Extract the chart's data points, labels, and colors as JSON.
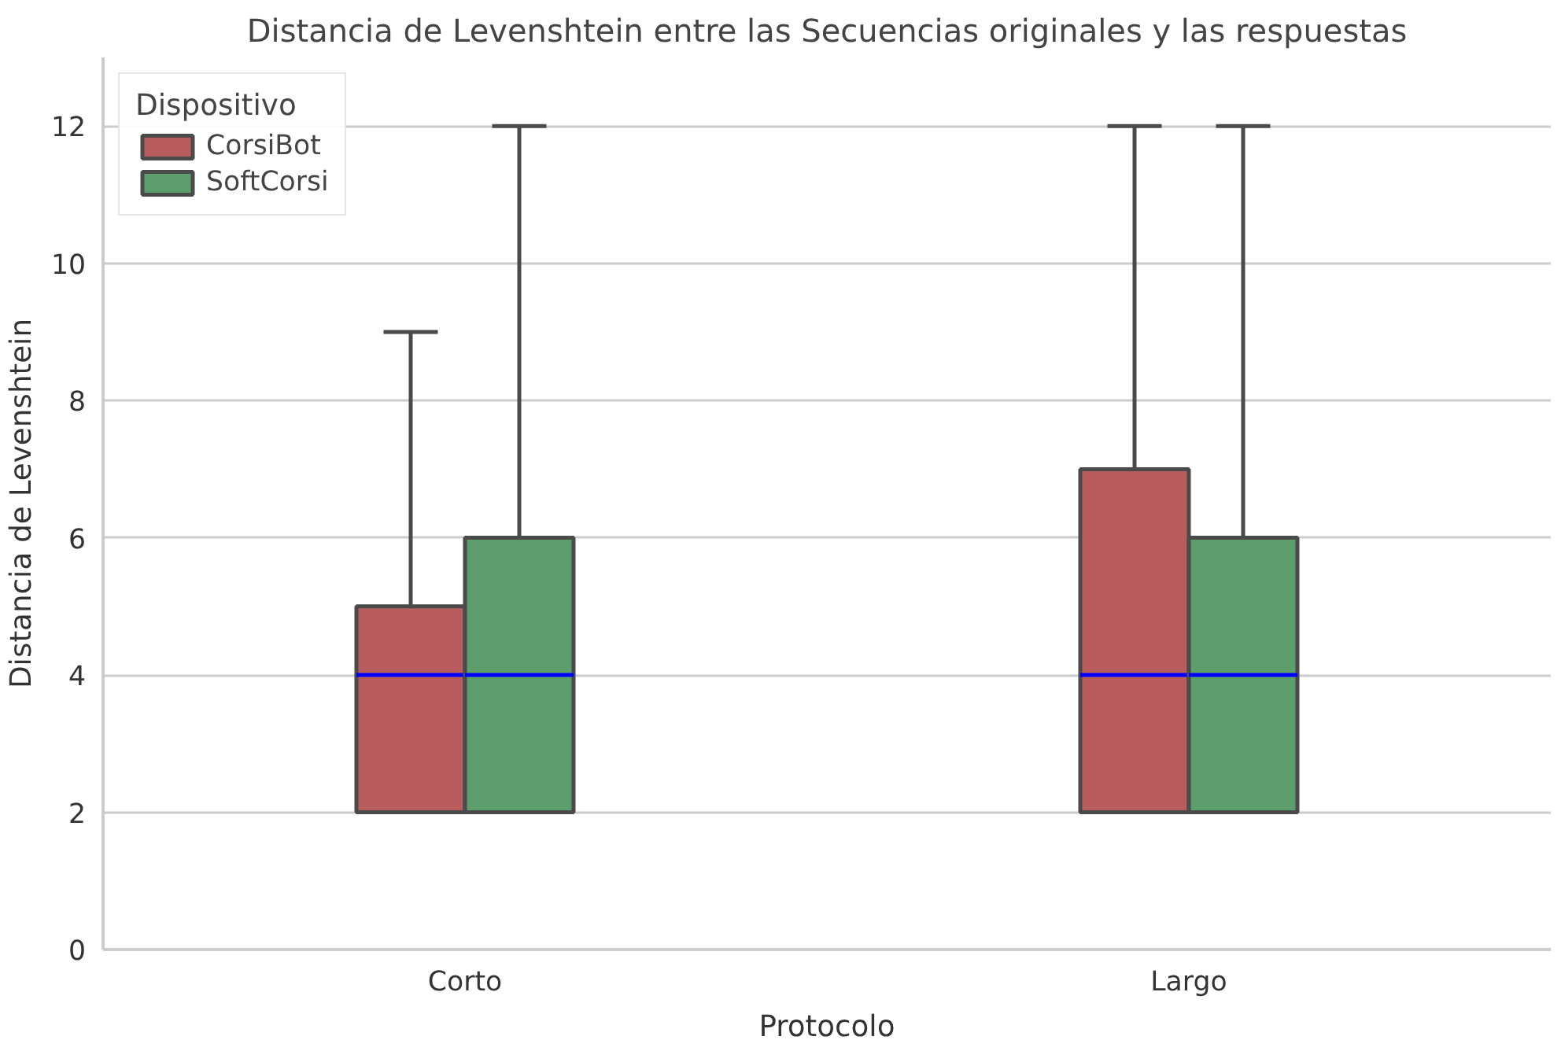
{
  "chart_data": {
    "type": "box",
    "title": "Distancia de Levenshtein entre las Secuencias originales y las respuestas",
    "xlabel": "Protocolo",
    "ylabel": "Distancia de Levenshtein",
    "legend_title": "Dispositivo",
    "categories": [
      "Corto",
      "Largo"
    ],
    "series": [
      {
        "name": "CorsiBot",
        "color": "#b85c5e",
        "boxes": [
          {
            "low": 2,
            "q1": 2,
            "median": 4,
            "q3": 5,
            "high": 9
          },
          {
            "low": 2,
            "q1": 2,
            "median": 4,
            "q3": 7,
            "high": 12
          }
        ]
      },
      {
        "name": "SoftCorsi",
        "color": "#5c9e6c",
        "boxes": [
          {
            "low": 2,
            "q1": 2,
            "median": 4,
            "q3": 6,
            "high": 12
          },
          {
            "low": 2,
            "q1": 2,
            "median": 4,
            "q3": 6,
            "high": 12
          }
        ]
      }
    ],
    "ylim": [
      0,
      13
    ],
    "yticks": [
      0,
      2,
      4,
      6,
      8,
      10,
      12
    ],
    "grid": "y",
    "legend": "top left"
  }
}
